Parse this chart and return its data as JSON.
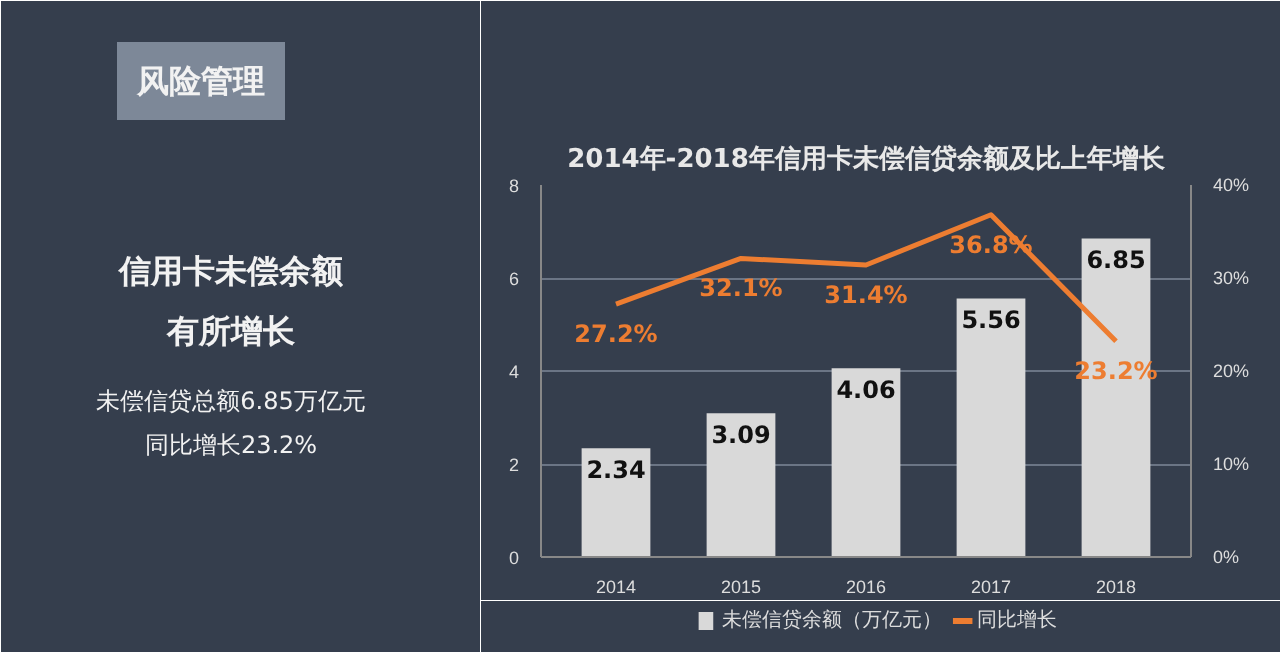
{
  "chart_data": {
    "type": "bar",
    "title": "2014年-2018年信用卡未偿信贷余额及比上年增长",
    "categories": [
      "2014",
      "2015",
      "2016",
      "2017",
      "2018"
    ],
    "series": [
      {
        "name": "未偿信贷余额（万亿元）",
        "color": "#d9d9d9",
        "values": [
          2.34,
          3.09,
          4.06,
          5.56,
          6.85
        ],
        "value_labels": [
          "2.34",
          "3.09",
          "4.06",
          "5.56",
          "6.85"
        ]
      },
      {
        "type": "line",
        "axis": "y2",
        "name": "同比增长",
        "color": "#ed7d31",
        "values": [
          27.2,
          32.1,
          31.4,
          36.8,
          23.2
        ],
        "value_labels": [
          "27.2%",
          "32.1%",
          "31.4%",
          "36.8%",
          "23.2%"
        ]
      }
    ],
    "ylim": [
      0,
      8
    ],
    "yticks": [
      0,
      2,
      4,
      6,
      8
    ],
    "y2lim": [
      0,
      40
    ],
    "y2ticks": [
      {
        "value": 0,
        "label": "0%"
      },
      {
        "value": 10,
        "label": "10%"
      },
      {
        "value": 20,
        "label": "20%"
      },
      {
        "value": 30,
        "label": "30%"
      },
      {
        "value": 40,
        "label": "40%"
      }
    ],
    "grid": "y",
    "legend": "bottom",
    "marker": "none",
    "line_style": "solid",
    "annotations": [
      "风险管理",
      "信用卡未偿余额",
      "有所增长",
      "未偿信贷总额6.85万亿元",
      "同比增长23.2%"
    ]
  }
}
